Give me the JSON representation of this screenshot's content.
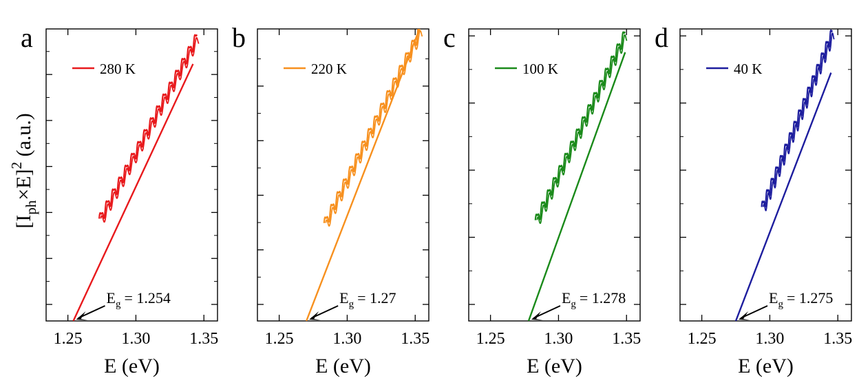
{
  "figure": {
    "ylabel_parts": {
      "open": "[I",
      "sub": "ph",
      "mid": "×E]",
      "sup": "2",
      "unit": " (a.u.)"
    }
  },
  "chart_data": [
    {
      "type": "line",
      "panel": "a",
      "color": "#e8191c",
      "legend": "280 K",
      "xlabel": "E (eV)",
      "xlim": [
        1.234,
        1.36
      ],
      "ylim": [
        0,
        1
      ],
      "xticks": [
        "1.25",
        "1.30",
        "1.35"
      ],
      "x_tick_values": [
        1.25,
        1.3,
        1.35
      ],
      "y_major_count": 6,
      "fit": {
        "x": [
          1.254,
          1.342
        ],
        "y": [
          0,
          0.88
        ]
      },
      "data_range": {
        "x": [
          1.273,
          1.345
        ],
        "y": [
          0.345,
          0.975
        ]
      },
      "eg": {
        "symbol": "E",
        "sub": "g",
        "value": "= 1.254",
        "x": 1.254
      }
    },
    {
      "type": "line",
      "panel": "b",
      "color": "#f7901e",
      "legend": "220 K",
      "xlabel": "E (eV)",
      "xlim": [
        1.234,
        1.36
      ],
      "ylim": [
        0,
        1
      ],
      "xticks": [
        "1.25",
        "1.30",
        "1.35"
      ],
      "x_tick_values": [
        1.25,
        1.3,
        1.35
      ],
      "y_major_count": 5,
      "fit": {
        "x": [
          1.27,
          1.354
        ],
        "y": [
          0,
          1.01
        ]
      },
      "data_range": {
        "x": [
          1.283,
          1.354
        ],
        "y": [
          0.33,
          1.0
        ]
      },
      "eg": {
        "symbol": "E",
        "sub": "g",
        "value": "= 1.27",
        "x": 1.27
      }
    },
    {
      "type": "line",
      "panel": "c",
      "color": "#1a8a1a",
      "legend": "100 K",
      "xlabel": "E (eV)",
      "xlim": [
        1.234,
        1.36
      ],
      "ylim": [
        0,
        1
      ],
      "xticks": [
        "1.25",
        "1.30",
        "1.35"
      ],
      "x_tick_values": [
        1.25,
        1.3,
        1.35
      ],
      "y_major_count": 4,
      "fit": {
        "x": [
          1.278,
          1.349
        ],
        "y": [
          0,
          0.92
        ]
      },
      "data_range": {
        "x": [
          1.283,
          1.349
        ],
        "y": [
          0.34,
          0.985
        ]
      },
      "eg": {
        "symbol": "E",
        "sub": "g",
        "value": "= 1.278",
        "x": 1.278
      }
    },
    {
      "type": "line",
      "panel": "d",
      "color": "#1d1d9e",
      "legend": "40 K",
      "xlabel": "E (eV)",
      "xlim": [
        1.234,
        1.36
      ],
      "ylim": [
        0,
        1
      ],
      "xticks": [
        "1.25",
        "1.30",
        "1.35"
      ],
      "x_tick_values": [
        1.25,
        1.3,
        1.35
      ],
      "y_major_count": 4,
      "fit": {
        "x": [
          1.275,
          1.345
        ],
        "y": [
          0,
          0.85
        ]
      },
      "data_range": {
        "x": [
          1.294,
          1.346
        ],
        "y": [
          0.385,
          0.99
        ]
      },
      "eg": {
        "symbol": "E",
        "sub": "g",
        "value": "= 1.275",
        "x": 1.275
      }
    }
  ]
}
